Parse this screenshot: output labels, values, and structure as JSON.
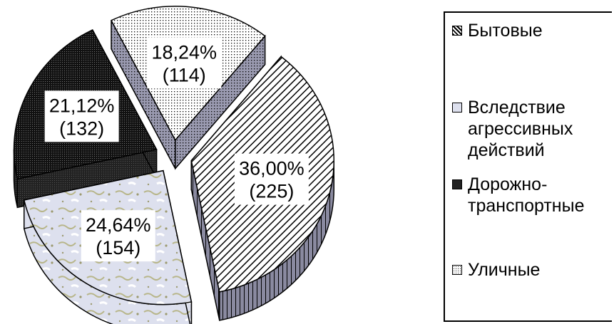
{
  "chart_data": {
    "type": "pie",
    "title": "",
    "categories": [
      "Бытовые",
      "Вследствие агрессивных действий",
      "Дорожно-транспортные",
      "Уличные"
    ],
    "series": [
      {
        "values": [
          36.0,
          24.64,
          21.12,
          18.24
        ]
      }
    ],
    "counts": [
      225,
      154,
      132,
      114
    ],
    "data_labels": [
      {
        "percent": "36,00%",
        "count": "(225)"
      },
      {
        "percent": "24,64%",
        "count": "(154)"
      },
      {
        "percent": "21,12%",
        "count": "(132)"
      },
      {
        "percent": "18,24%",
        "count": "(114)"
      }
    ],
    "exploded": true,
    "three_d": true,
    "legend_position": "right"
  },
  "legend": {
    "items": [
      {
        "label": "Бытовые",
        "swatch": "hatch"
      },
      {
        "label": "Вследствие\nагрессивных\nдействий",
        "swatch": "light"
      },
      {
        "label": "Дорожно-\nтранспортные",
        "swatch": "dark"
      },
      {
        "label": "Уличные",
        "swatch": "dotted"
      }
    ]
  },
  "colors": {
    "background": "#ffffff",
    "outline": "#000000",
    "hatch_side": "#8a8aa0",
    "light_fill": "#dde0ee",
    "dark_fill": "#1a1a1a",
    "dotted_side": "#9a9ab0"
  }
}
